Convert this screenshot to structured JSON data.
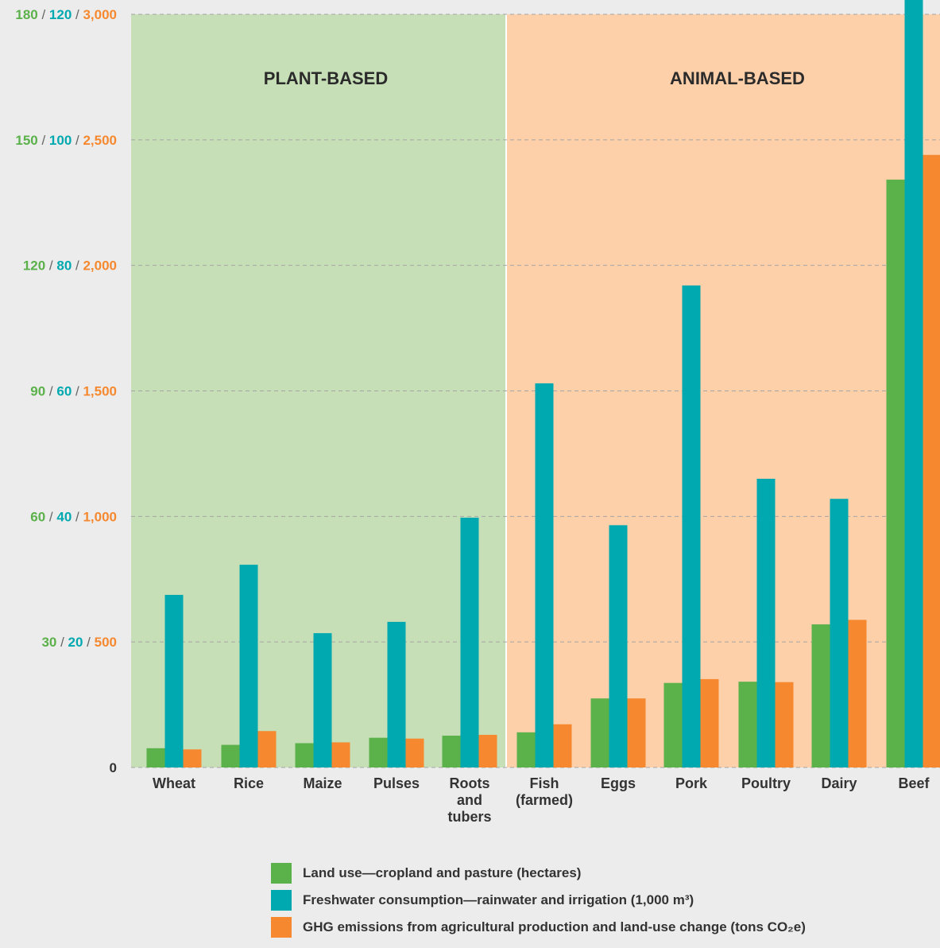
{
  "chart_data": {
    "type": "bar",
    "categories": [
      "Wheat",
      "Rice",
      "Maize",
      "Pulses",
      "Roots\nand\ntubers",
      "Fish\n(farmed)",
      "Eggs",
      "Pork",
      "Poultry",
      "Dairy",
      "Beef"
    ],
    "regions": [
      {
        "label": "PLANT-BASED",
        "categories": [
          "Wheat",
          "Rice",
          "Maize",
          "Pulses",
          "Roots and tubers"
        ],
        "color": "#c6dfb6"
      },
      {
        "label": "ANIMAL-BASED",
        "categories": [
          "Fish (farmed)",
          "Eggs",
          "Pork",
          "Poultry",
          "Dairy",
          "Beef"
        ],
        "color": "#fdd0aa"
      }
    ],
    "series": [
      {
        "name": "Land use—cropland and pasture (hectares)",
        "color": "#5bb14a",
        "axis_max": 180,
        "values": [
          4.6,
          5.4,
          5.8,
          7.1,
          7.6,
          8.4,
          16.5,
          20.2,
          20.5,
          34.2,
          140.5
        ]
      },
      {
        "name": "Freshwater consumption—rainwater and irrigation (1,000 m³)",
        "color": "#00a9b0",
        "axis_max": 120,
        "values": [
          27.5,
          32.3,
          21.4,
          23.2,
          39.8,
          61.2,
          38.6,
          76.8,
          46.0,
          42.8,
          163.0
        ]
      },
      {
        "name": "GHG emissions from agricultural production and land-use change (tons CO₂e)",
        "color": "#f6892f",
        "axis_max": 3000,
        "values": [
          72,
          145,
          100,
          115,
          130,
          172,
          275,
          352,
          340,
          588,
          2440
        ]
      }
    ],
    "y_ticks": [
      [
        "0"
      ],
      [
        "30",
        "20",
        "500"
      ],
      [
        "60",
        "40",
        "1,000"
      ],
      [
        "90",
        "60",
        "1,500"
      ],
      [
        "120",
        "80",
        "2,000"
      ],
      [
        "150",
        "100",
        "2,500"
      ],
      [
        "180",
        "120",
        "3,000"
      ]
    ],
    "grid": true,
    "legend_position": "bottom"
  }
}
